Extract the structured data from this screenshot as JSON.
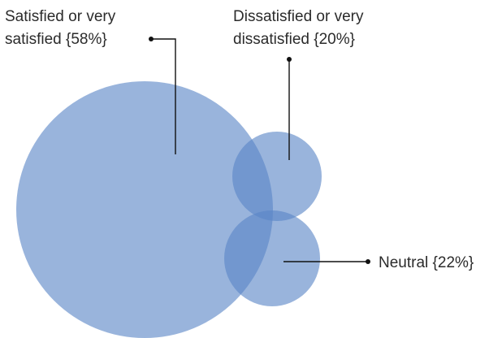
{
  "chart_data": {
    "type": "bubble",
    "series": [
      {
        "category": "Satisfied or very satisfied",
        "value": 58,
        "label_lines": [
          "Satisfied or very",
          "satisfied {58%}"
        ]
      },
      {
        "category": "Dissatisfied or very dissatisfied",
        "value": 20,
        "label_lines": [
          "Dissatisfied or very",
          "dissatisfied {20%}"
        ]
      },
      {
        "category": "Neutral",
        "value": 22,
        "label_lines": [
          "Neutral {22%}"
        ]
      }
    ],
    "colors": {
      "bubble": "#5b86c7",
      "leader": "#111111",
      "text": "#2b2b2b"
    }
  }
}
